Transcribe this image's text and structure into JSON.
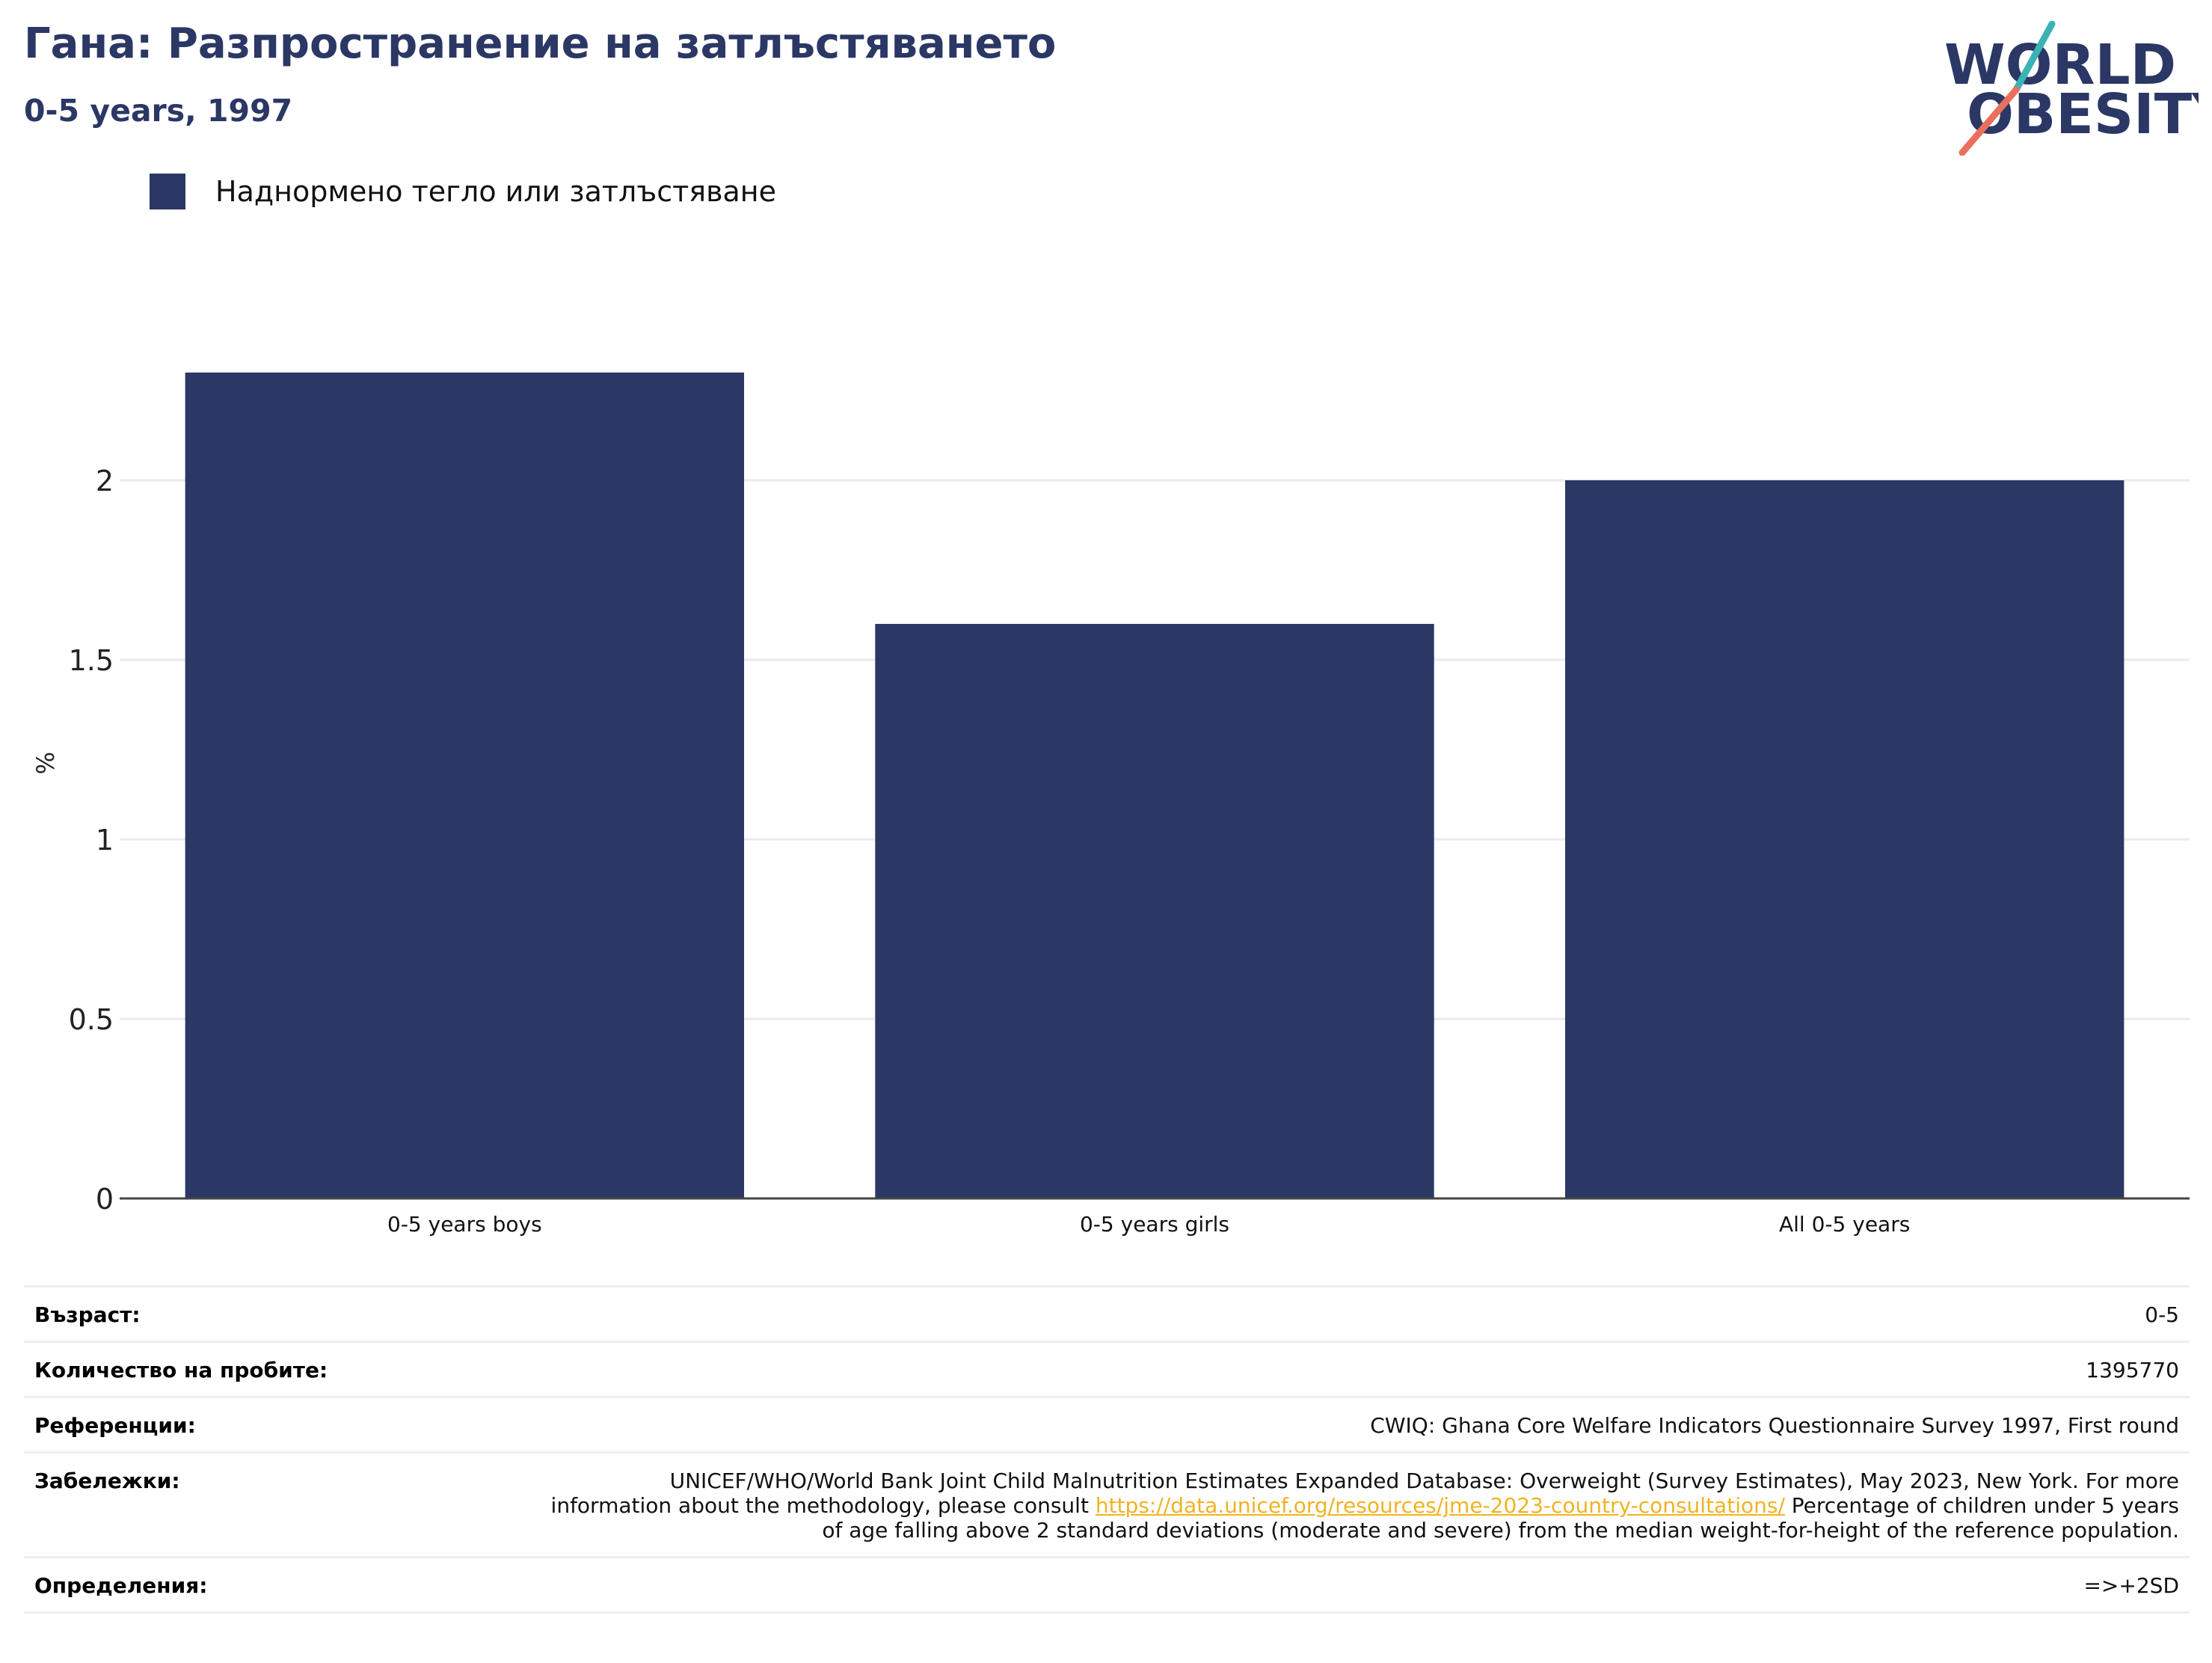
{
  "header": {
    "title": "Гана: Разпространение на затлъстяването",
    "subtitle": "0-5 years, 1997"
  },
  "logo": {
    "line1": "WORLD",
    "line2": "OBESITY"
  },
  "colors": {
    "bar": "#2b3764",
    "title": "#2b3764",
    "link": "#f0b323",
    "grid": "#e9eaf2"
  },
  "chart_data": {
    "type": "bar",
    "categories": [
      "0-5 years boys",
      "0-5 years girls",
      "All 0-5 years"
    ],
    "series": [
      {
        "name": "Наднормено тегло или затлъстяване",
        "values": [
          2.3,
          1.6,
          2.0
        ]
      }
    ],
    "ylabel": "%",
    "yticks": [
      "0",
      "0.5",
      "1",
      "1.5",
      "2"
    ],
    "ylim": [
      0,
      2.4
    ],
    "grid": true,
    "legend": "top-left"
  },
  "info": {
    "age_label": "Възраст:",
    "age_value": "0-5",
    "sample_label": "Количество на пробите:",
    "sample_value": "1395770",
    "refs_label": "Референции:",
    "refs_value": "CWIQ: Ghana Core Welfare Indicators Questionnaire Survey 1997, First round",
    "notes_label": "Забележки:",
    "notes_text_before": "UNICEF/WHO/World Bank Joint Child Malnutrition Estimates Expanded Database: Overweight (Survey Estimates), May 2023, New York. For more information about the methodology, please consult ",
    "notes_link": "https://data.unicef.org/resources/jme-2023-country-consultations/",
    "notes_text_after": " Percentage of children under 5 years of age falling above 2 standard deviations (moderate and severe) from the median weight-for-height of the reference population.",
    "defs_label": "Определения:",
    "defs_value": "=>+2SD"
  }
}
